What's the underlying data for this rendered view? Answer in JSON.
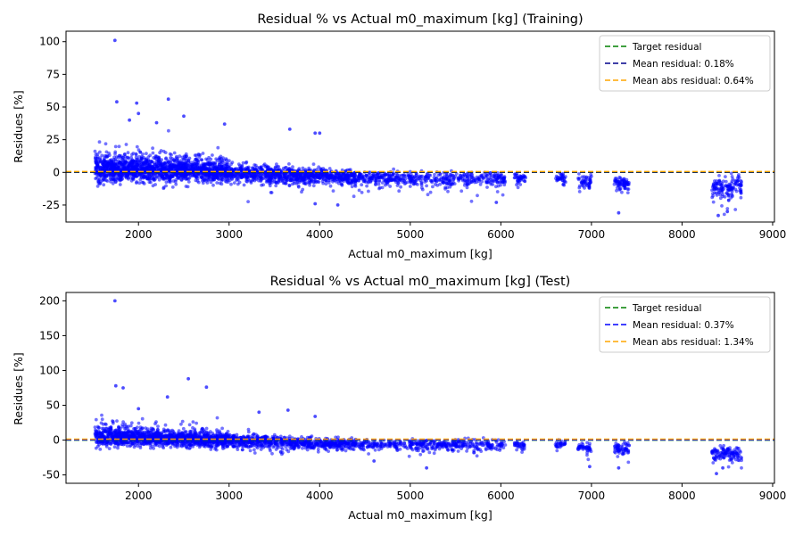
{
  "chart_data": [
    {
      "type": "scatter",
      "title": "Residual % vs Actual m0_maximum [kg] (Training)",
      "xlabel": "Actual m0_maximum [kg]",
      "ylabel": "Residues [%]",
      "xlim": [
        1200,
        9020
      ],
      "ylim": [
        -38,
        108
      ],
      "xticks": [
        2000,
        3000,
        4000,
        5000,
        6000,
        7000,
        8000,
        9000
      ],
      "yticks": [
        -25,
        0,
        25,
        50,
        75,
        100
      ],
      "point_color": "#0000ff",
      "legend_position": "top-right",
      "reference_lines": [
        {
          "label": "Target residual",
          "y": 0,
          "color": "#008000",
          "style": "dashed"
        },
        {
          "label": "Mean residual: 0.18%",
          "y": 0.18,
          "color": "#00008b",
          "style": "dashed"
        },
        {
          "label": "Mean abs residual: 0.64%",
          "y": 0.64,
          "color": "#ffa500",
          "style": "dashed"
        }
      ],
      "clusters": [
        {
          "x": [
            1520,
            3000
          ],
          "y_center": [
            3,
            0
          ],
          "spread": [
            9,
            7
          ],
          "n": 1700
        },
        {
          "x": [
            3000,
            4000
          ],
          "y_center": [
            0,
            -3
          ],
          "spread": [
            6,
            5
          ],
          "n": 700
        },
        {
          "x": [
            4000,
            4400
          ],
          "y_center": [
            -2,
            -4
          ],
          "spread": [
            4,
            5
          ],
          "n": 250
        },
        {
          "x": [
            4400,
            6050
          ],
          "y_center": [
            -4,
            -5
          ],
          "spread": [
            4,
            5
          ],
          "n": 500
        },
        {
          "x": [
            6150,
            6280
          ],
          "y_center": [
            -4,
            -5
          ],
          "spread": [
            4,
            4
          ],
          "n": 40
        },
        {
          "x": [
            6600,
            6720
          ],
          "y_center": [
            -5,
            -5
          ],
          "spread": [
            3,
            4
          ],
          "n": 35
        },
        {
          "x": [
            6850,
            7000
          ],
          "y_center": [
            -6,
            -7
          ],
          "spread": [
            4,
            5
          ],
          "n": 50
        },
        {
          "x": [
            7250,
            7420
          ],
          "y_center": [
            -8,
            -9
          ],
          "spread": [
            5,
            6
          ],
          "n": 70
        },
        {
          "x": [
            8330,
            8660
          ],
          "y_center": [
            -12,
            -12
          ],
          "spread": [
            7,
            7
          ],
          "n": 140
        }
      ],
      "outliers": [
        [
          1740,
          101
        ],
        [
          2330,
          56
        ],
        [
          1980,
          53
        ],
        [
          1760,
          54
        ],
        [
          2500,
          43
        ],
        [
          2000,
          45
        ],
        [
          2950,
          37
        ],
        [
          3670,
          33
        ],
        [
          3950,
          30
        ],
        [
          4000,
          30
        ],
        [
          1900,
          40
        ],
        [
          2200,
          38
        ],
        [
          8400,
          -33
        ],
        [
          7300,
          -31
        ],
        [
          8500,
          -30
        ],
        [
          4200,
          -25
        ],
        [
          5950,
          -23
        ],
        [
          3950,
          -24
        ]
      ]
    },
    {
      "type": "scatter",
      "title": "Residual % vs Actual m0_maximum [kg] (Test)",
      "xlabel": "Actual m0_maximum [kg]",
      "ylabel": "Residues [%]",
      "xlim": [
        1200,
        9020
      ],
      "ylim": [
        -62,
        212
      ],
      "xticks": [
        2000,
        3000,
        4000,
        5000,
        6000,
        7000,
        8000,
        9000
      ],
      "yticks": [
        -50,
        0,
        50,
        100,
        150,
        200
      ],
      "point_color": "#0000ff",
      "legend_position": "top-right",
      "reference_lines": [
        {
          "label": "Target residual",
          "y": 0,
          "color": "#008000",
          "style": "dashed"
        },
        {
          "label": "Mean residual: 0.37%",
          "y": 0.37,
          "color": "#0000ff",
          "style": "dashed"
        },
        {
          "label": "Mean abs residual: 1.34%",
          "y": 1.34,
          "color": "#ffa500",
          "style": "dashed"
        }
      ],
      "clusters": [
        {
          "x": [
            1520,
            3000
          ],
          "y_center": [
            5,
            0
          ],
          "spread": [
            12,
            9
          ],
          "n": 1400
        },
        {
          "x": [
            3000,
            4000
          ],
          "y_center": [
            0,
            -4
          ],
          "spread": [
            8,
            7
          ],
          "n": 550
        },
        {
          "x": [
            4000,
            4400
          ],
          "y_center": [
            -4,
            -6
          ],
          "spread": [
            6,
            7
          ],
          "n": 200
        },
        {
          "x": [
            4400,
            6050
          ],
          "y_center": [
            -6,
            -7
          ],
          "spread": [
            6,
            7
          ],
          "n": 420
        },
        {
          "x": [
            6150,
            6280
          ],
          "y_center": [
            -6,
            -6
          ],
          "spread": [
            5,
            5
          ],
          "n": 35
        },
        {
          "x": [
            6600,
            6720
          ],
          "y_center": [
            -6,
            -6
          ],
          "spread": [
            4,
            5
          ],
          "n": 30
        },
        {
          "x": [
            6850,
            7000
          ],
          "y_center": [
            -10,
            -12
          ],
          "spread": [
            6,
            8
          ],
          "n": 45
        },
        {
          "x": [
            7250,
            7420
          ],
          "y_center": [
            -12,
            -13
          ],
          "spread": [
            7,
            8
          ],
          "n": 60
        },
        {
          "x": [
            8330,
            8660
          ],
          "y_center": [
            -18,
            -20
          ],
          "spread": [
            9,
            10
          ],
          "n": 120
        }
      ],
      "outliers": [
        [
          1740,
          200
        ],
        [
          2550,
          88
        ],
        [
          1750,
          78
        ],
        [
          2750,
          76
        ],
        [
          1830,
          75
        ],
        [
          2320,
          62
        ],
        [
          3650,
          43
        ],
        [
          3950,
          34
        ],
        [
          3330,
          40
        ],
        [
          2000,
          45
        ],
        [
          8380,
          -48
        ],
        [
          7300,
          -40
        ],
        [
          6980,
          -38
        ],
        [
          8450,
          -40
        ],
        [
          5180,
          -40
        ],
        [
          4600,
          -30
        ]
      ]
    }
  ]
}
